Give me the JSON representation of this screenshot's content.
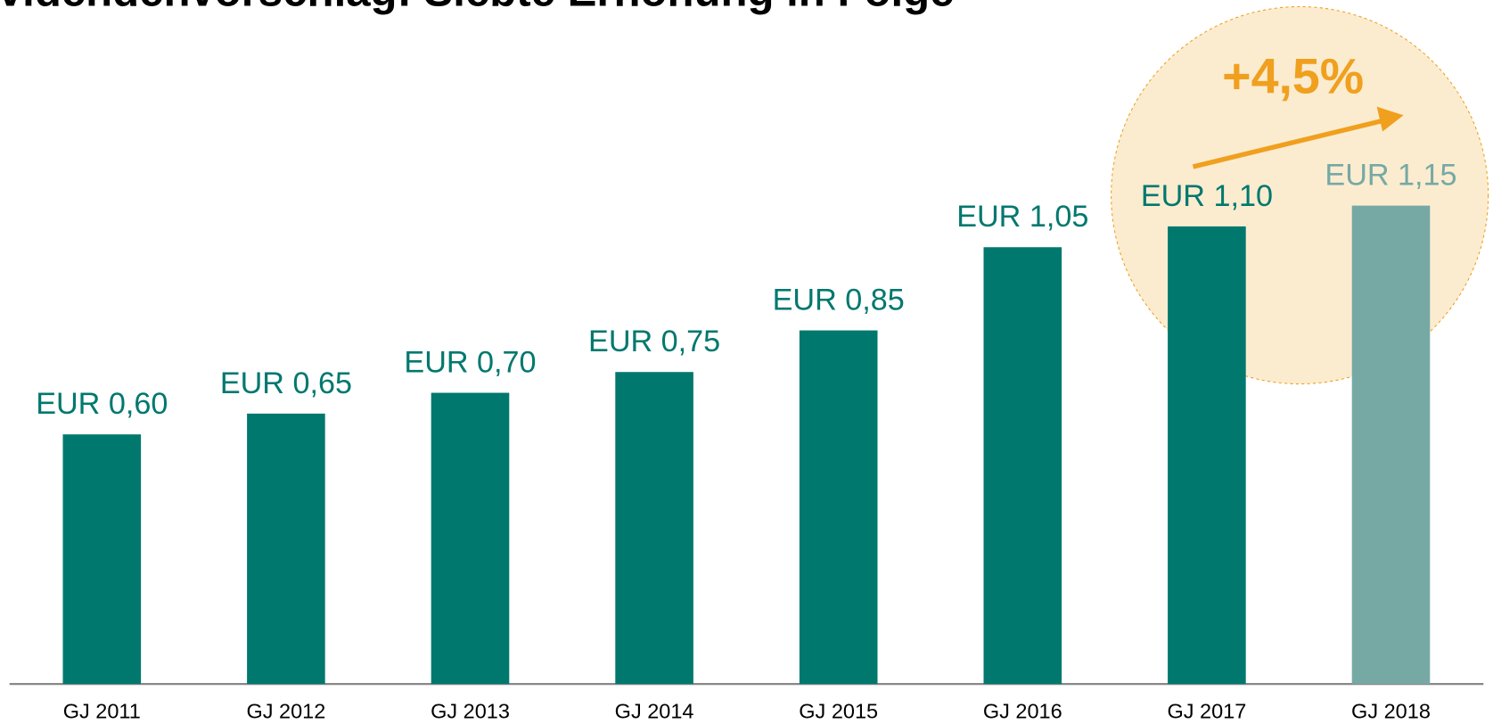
{
  "chart_data": {
    "type": "bar",
    "title": "Dividendenvorschlag: Siebte Erhöhung in Folge",
    "annotation": "+4,5%",
    "categories": [
      "GJ 2011",
      "GJ 2012",
      "GJ 2013",
      "GJ 2014",
      "GJ 2015",
      "GJ 2016",
      "GJ 2017",
      "GJ 2018"
    ],
    "values": [
      0.6,
      0.65,
      0.7,
      0.75,
      0.85,
      1.05,
      1.1,
      1.15
    ],
    "value_labels": [
      "EUR 0,60",
      "EUR 0,65",
      "EUR 0,70",
      "EUR 0,75",
      "EUR 0,85",
      "EUR 1,05",
      "EUR 1,10",
      "EUR 1,15"
    ],
    "colors": [
      "#00786e",
      "#00786e",
      "#00786e",
      "#00786e",
      "#00786e",
      "#00786e",
      "#00786e",
      "#76a9a4"
    ],
    "ylim": [
      0,
      1.2
    ]
  }
}
